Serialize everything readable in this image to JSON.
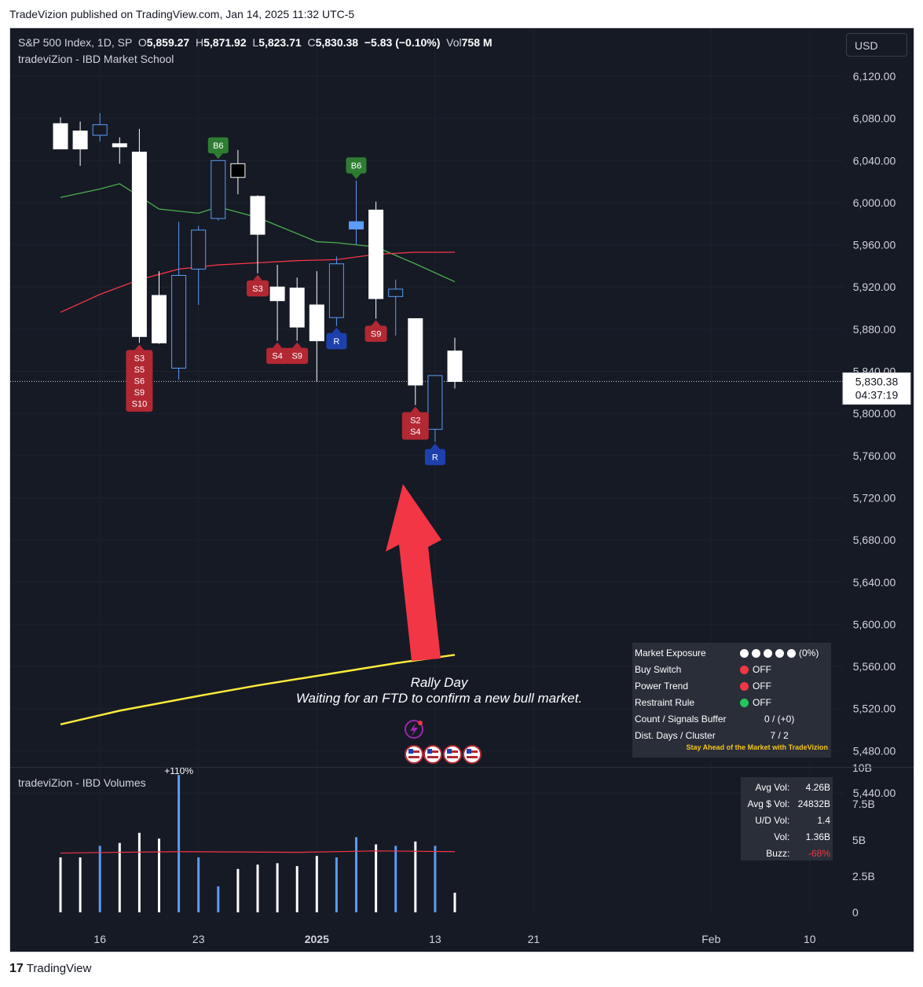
{
  "header": {
    "publisher_caption": "TradeVizion published on TradingView.com, Jan 14, 2025 11:32 UTC-5"
  },
  "legend": {
    "symbol": "S&P 500 Index, 1D, SP",
    "o_label": "O",
    "open": "5,859.27",
    "h_label": "H",
    "high": "5,871.92",
    "l_label": "L",
    "low": "5,823.71",
    "c_label": "C",
    "close": "5,830.38",
    "change": "−5.83 (−0.10%)",
    "vol_label": "Vol",
    "vol": "758 M",
    "indicator": "tradeviZion - IBD Market School"
  },
  "currency_button": "USD",
  "price_badge": {
    "price": "5,830.38",
    "countdown": "04:37:19"
  },
  "annotation": {
    "line1": "Rally Day",
    "line2": "Waiting for an FTD to confirm a new bull market."
  },
  "market_panel": {
    "rows": [
      {
        "label": "Market Exposure",
        "value": "(0%)",
        "dots": [
          "#ffffff",
          "#ffffff",
          "#ffffff",
          "#ffffff",
          "#ffffff"
        ]
      },
      {
        "label": "Buy Switch",
        "value": "OFF",
        "dot": "#f23645"
      },
      {
        "label": "Power Trend",
        "value": "OFF",
        "dot": "#f23645"
      },
      {
        "label": "Restraint Rule",
        "value": "OFF",
        "dot": "#22c55e"
      },
      {
        "label": "Count / Signals Buffer",
        "value": "0 / (+0)"
      },
      {
        "label": "Dist. Days / Cluster",
        "value": "7 / 2"
      }
    ],
    "footer": "Stay Ahead of the Market with TradeVizion",
    "footer_color": "#f5c518"
  },
  "volume_pane": {
    "title": "tradeviZion - IBD Volumes",
    "peak_label": "+110%",
    "panel": [
      {
        "label": "Avg Vol:",
        "value": "4.26B"
      },
      {
        "label": "Avg $ Vol:",
        "value": "24832B"
      },
      {
        "label": "U/D Vol:",
        "value": "1.4"
      },
      {
        "label": "Vol:",
        "value": "1.36B"
      },
      {
        "label": "Buzz:",
        "value": "-68%",
        "color": "#f23645"
      }
    ]
  },
  "footer": {
    "brand": "TradingView",
    "mark": "17"
  },
  "colors": {
    "background": "#161a25",
    "up_candle": "#000000",
    "down_candle": "#ffffff",
    "blue_candle": "#5b9cf6",
    "sell_tag": "#b22833",
    "buy_tag": "#2e7d32",
    "reversal_tag": "#1e40af",
    "sma21": "#4caf50",
    "sma50": "#f23645",
    "sma200": "#ffeb3b",
    "arrow": "#f23645"
  },
  "chart_data": [
    {
      "type": "candlestick",
      "title": "S&P 500 Index, 1D, SP",
      "y_axis_ticks": [
        "6,120.00",
        "6,080.00",
        "6,040.00",
        "6,000.00",
        "5,960.00",
        "5,920.00",
        "5,880.00",
        "5,840.00",
        "5,800.00",
        "5,760.00",
        "5,720.00",
        "5,680.00",
        "5,640.00",
        "5,600.00",
        "5,560.00",
        "5,520.00",
        "5,480.00",
        "5,440.00"
      ],
      "ylim": [
        5430,
        6140
      ],
      "x_axis_ticks": [
        "16",
        "23",
        "2025",
        "13",
        "21",
        "Feb",
        "10"
      ],
      "x_tick_indices": [
        2,
        7,
        13,
        19,
        24,
        33,
        38
      ],
      "bars": [
        {
          "date": "2024-12-12",
          "open": 6075,
          "high": 6081,
          "low": 6055,
          "close": 6051,
          "style": "solid"
        },
        {
          "date": "2024-12-13",
          "open": 6068,
          "high": 6077,
          "low": 6035,
          "close": 6051,
          "style": "solid"
        },
        {
          "date": "2024-12-16",
          "open": 6064,
          "high": 6085,
          "low": 6058,
          "close": 6074,
          "style": "blue"
        },
        {
          "date": "2024-12-17",
          "open": 6056,
          "high": 6062,
          "low": 6037,
          "close": 6053,
          "style": "solid"
        },
        {
          "date": "2024-12-18",
          "open": 6048,
          "high": 6070,
          "low": 5867,
          "close": 5873,
          "style": "solid"
        },
        {
          "date": "2024-12-19",
          "open": 5912,
          "high": 5935,
          "low": 5866,
          "close": 5867,
          "style": "solid"
        },
        {
          "date": "2024-12-20",
          "open": 5843,
          "high": 5982,
          "low": 5832,
          "close": 5931,
          "style": "blue"
        },
        {
          "date": "2024-12-23",
          "open": 5937,
          "high": 5978,
          "low": 5903,
          "close": 5974,
          "style": "blue"
        },
        {
          "date": "2024-12-24",
          "open": 5985,
          "high": 6040,
          "low": 5983,
          "close": 6040,
          "style": "blue"
        },
        {
          "date": "2024-12-26",
          "open": 6024,
          "high": 6050,
          "low": 6008,
          "close": 6037,
          "style": "hollow"
        },
        {
          "date": "2024-12-27",
          "open": 6006,
          "high": 6007,
          "low": 5933,
          "close": 5970,
          "style": "solid"
        },
        {
          "date": "2024-12-30",
          "open": 5920,
          "high": 5941,
          "low": 5869,
          "close": 5907,
          "style": "solid"
        },
        {
          "date": "2024-12-31",
          "open": 5919,
          "high": 5929,
          "low": 5869,
          "close": 5882,
          "style": "solid"
        },
        {
          "date": "2025-01-02",
          "open": 5903,
          "high": 5935,
          "low": 5830,
          "close": 5869,
          "style": "solid"
        },
        {
          "date": "2025-01-03",
          "open": 5891,
          "high": 5949,
          "low": 5883,
          "close": 5942,
          "style": "blue"
        },
        {
          "date": "2025-01-06",
          "open": 5982,
          "high": 6021,
          "low": 5960,
          "close": 5975,
          "style": "blue_filled"
        },
        {
          "date": "2025-01-07",
          "open": 5993,
          "high": 6001,
          "low": 5890,
          "close": 5909,
          "style": "solid"
        },
        {
          "date": "2025-01-08",
          "open": 5911,
          "high": 5927,
          "low": 5874,
          "close": 5918,
          "style": "blue"
        },
        {
          "date": "2025-01-10",
          "open": 5890,
          "high": 5890,
          "low": 5808,
          "close": 5827,
          "style": "solid"
        },
        {
          "date": "2025-01-13",
          "open": 5785,
          "high": 5834,
          "low": 5773,
          "close": 5836,
          "style": "blue"
        },
        {
          "date": "2025-01-14",
          "open": 5859.27,
          "high": 5871.92,
          "low": 5823.71,
          "close": 5830.38,
          "style": "solid"
        }
      ],
      "moving_averages": [
        {
          "name": "SMA21",
          "color": "#4caf50",
          "points": [
            [
              0,
              6005
            ],
            [
              2,
              6013
            ],
            [
              3,
              6018
            ],
            [
              5,
              5994
            ],
            [
              7,
              5990
            ],
            [
              8,
              5996
            ],
            [
              10,
              5986
            ],
            [
              13,
              5963
            ],
            [
              14,
              5962
            ],
            [
              16,
              5958
            ],
            [
              18,
              5942
            ],
            [
              20,
              5925
            ]
          ]
        },
        {
          "name": "SMA50",
          "color": "#f23645",
          "points": [
            [
              0,
              5896
            ],
            [
              2,
              5913
            ],
            [
              4,
              5927
            ],
            [
              6,
              5937
            ],
            [
              8,
              5941
            ],
            [
              10,
              5943
            ],
            [
              12,
              5945
            ],
            [
              14,
              5946
            ],
            [
              16,
              5951
            ],
            [
              18,
              5953
            ],
            [
              20,
              5953
            ]
          ]
        },
        {
          "name": "SMA200",
          "color": "#ffeb3b",
          "points": [
            [
              0,
              5505
            ],
            [
              3,
              5518
            ],
            [
              7,
              5532
            ],
            [
              10,
              5542
            ],
            [
              14,
              5554
            ],
            [
              17,
              5563
            ],
            [
              20,
              5571
            ]
          ]
        }
      ],
      "signals": [
        {
          "index": 4,
          "position": "below",
          "labels": [
            "S3",
            "S5",
            "S6",
            "S9",
            "S10"
          ],
          "kind": "sell"
        },
        {
          "index": 8,
          "position": "above",
          "labels": [
            "B6"
          ],
          "kind": "buy"
        },
        {
          "index": 10,
          "position": "below",
          "labels": [
            "S3"
          ],
          "kind": "sell"
        },
        {
          "index": 11,
          "position": "below",
          "labels": [
            "S4"
          ],
          "kind": "sell"
        },
        {
          "index": 12,
          "position": "below",
          "labels": [
            "S9"
          ],
          "kind": "sell"
        },
        {
          "index": 14,
          "position": "below",
          "labels": [
            "R"
          ],
          "kind": "reversal"
        },
        {
          "index": 15,
          "position": "above",
          "labels": [
            "B6"
          ],
          "kind": "buy"
        },
        {
          "index": 16,
          "position": "below",
          "labels": [
            "S9"
          ],
          "kind": "sell"
        },
        {
          "index": 18,
          "position": "below",
          "labels": [
            "S2",
            "S4"
          ],
          "kind": "sell"
        },
        {
          "index": 19,
          "position": "below",
          "labels": [
            "R"
          ],
          "kind": "reversal"
        }
      ]
    },
    {
      "type": "bar",
      "title": "tradeviZion - IBD Volumes",
      "y_axis_ticks": [
        "10B",
        "7.5B",
        "5B",
        "2.5B",
        "0"
      ],
      "ylim": [
        0,
        10
      ],
      "unit": "B",
      "values": [
        3.8,
        3.8,
        4.6,
        4.8,
        5.5,
        5.1,
        9.5,
        3.8,
        1.8,
        3.0,
        3.3,
        3.4,
        3.2,
        3.9,
        3.8,
        5.2,
        4.7,
        4.6,
        4.9,
        4.6,
        1.36
      ],
      "styles": [
        "w",
        "w",
        "b",
        "w",
        "w",
        "w",
        "b",
        "b",
        "b",
        "w",
        "w",
        "w",
        "w",
        "w",
        "b",
        "b",
        "w",
        "b",
        "w",
        "b",
        "w"
      ],
      "average_line": [
        [
          0,
          4.1
        ],
        [
          6,
          4.2
        ],
        [
          12,
          4.15
        ],
        [
          16,
          4.25
        ],
        [
          20,
          4.2
        ]
      ]
    }
  ]
}
